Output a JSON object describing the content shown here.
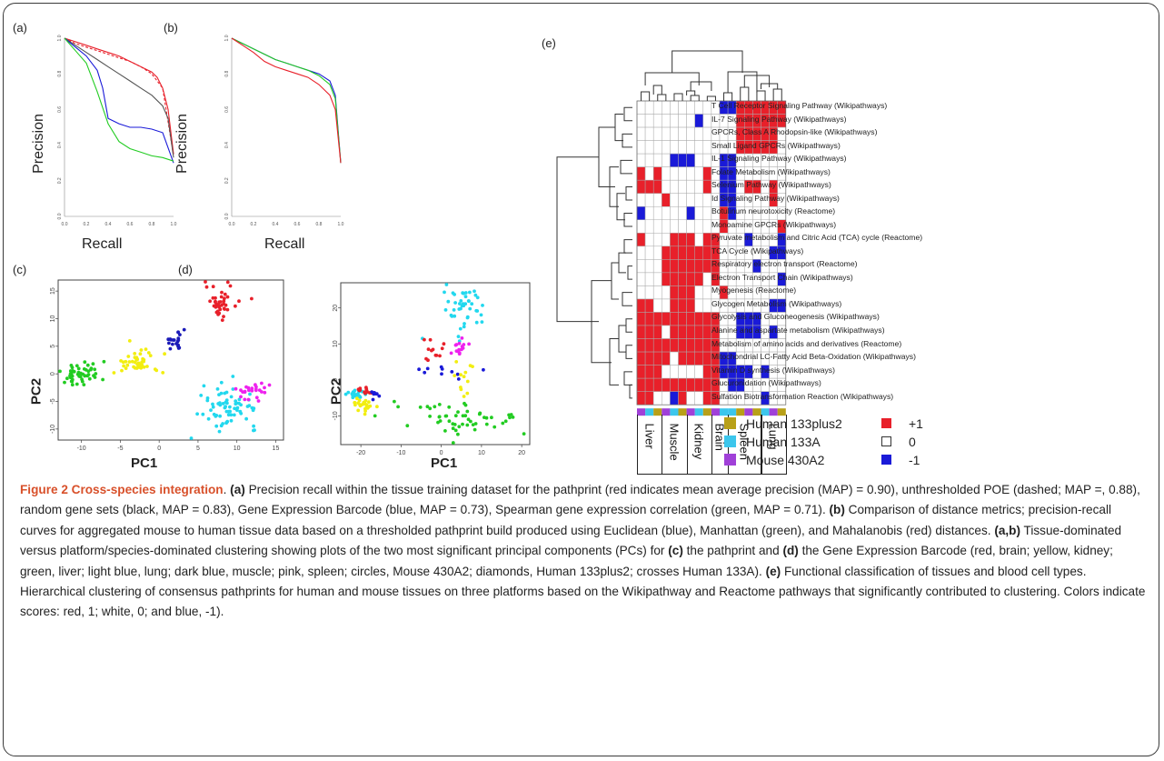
{
  "panels": {
    "a": {
      "letter": "(a)",
      "ylabel": "Precision",
      "xlabel": "Recall"
    },
    "b": {
      "letter": "(b)",
      "ylabel": "Precision",
      "xlabel": "Recall"
    },
    "c": {
      "letter": "(c)",
      "ylabel": "PC2",
      "xlabel": "PC1"
    },
    "d": {
      "letter": "(d)",
      "ylabel": "PC2",
      "xlabel": "PC1"
    },
    "e": {
      "letter": "(e)"
    }
  },
  "colors": {
    "red": "#e8202a",
    "blue": "#1a1ad8",
    "green": "#22cc22",
    "black": "#555555",
    "yellow": "#f2ee10",
    "cyan": "#22d8ee",
    "magenta": "#ee22ee",
    "darkblue": "#1a1ab8",
    "gold": "#b8a018",
    "lightblue": "#3cc6ec",
    "purple": "#a040d8"
  },
  "chart_data": [
    {
      "type": "line",
      "panel": "a",
      "xlabel": "Recall",
      "ylabel": "Precision",
      "xlim": [
        0,
        1
      ],
      "ylim": [
        0,
        1
      ],
      "xticks": [
        "0.0",
        "0.2",
        "0.4",
        "0.6",
        "0.8",
        "1.0"
      ],
      "yticks": [
        "0.0",
        "0.2",
        "0.4",
        "0.6",
        "0.8",
        "1.0"
      ],
      "series": [
        {
          "color": "red",
          "x": [
            0,
            0.1,
            0.2,
            0.3,
            0.4,
            0.5,
            0.6,
            0.7,
            0.8,
            0.85,
            0.9,
            0.95,
            1.0
          ],
          "y": [
            1.0,
            0.98,
            0.96,
            0.94,
            0.92,
            0.9,
            0.87,
            0.84,
            0.81,
            0.78,
            0.72,
            0.6,
            0.35
          ]
        },
        {
          "color": "red",
          "dashed": true,
          "x": [
            0,
            0.1,
            0.2,
            0.3,
            0.4,
            0.5,
            0.6,
            0.7,
            0.8,
            0.9,
            1.0
          ],
          "y": [
            1.0,
            0.97,
            0.95,
            0.93,
            0.91,
            0.89,
            0.87,
            0.84,
            0.8,
            0.72,
            0.34
          ]
        },
        {
          "color": "black",
          "x": [
            0,
            0.1,
            0.2,
            0.3,
            0.4,
            0.5,
            0.6,
            0.7,
            0.8,
            0.9,
            0.95,
            1.0
          ],
          "y": [
            1.0,
            0.96,
            0.92,
            0.88,
            0.84,
            0.8,
            0.76,
            0.72,
            0.68,
            0.62,
            0.55,
            0.33
          ]
        },
        {
          "color": "blue",
          "x": [
            0,
            0.1,
            0.2,
            0.3,
            0.35,
            0.4,
            0.5,
            0.6,
            0.7,
            0.8,
            0.9,
            1.0
          ],
          "y": [
            1.0,
            0.95,
            0.9,
            0.82,
            0.72,
            0.55,
            0.52,
            0.5,
            0.5,
            0.49,
            0.47,
            0.3
          ]
        },
        {
          "color": "green",
          "x": [
            0,
            0.1,
            0.2,
            0.3,
            0.4,
            0.5,
            0.6,
            0.7,
            0.8,
            0.9,
            1.0
          ],
          "y": [
            1.0,
            0.93,
            0.86,
            0.7,
            0.52,
            0.42,
            0.38,
            0.36,
            0.34,
            0.33,
            0.31
          ]
        }
      ]
    },
    {
      "type": "line",
      "panel": "b",
      "xlabel": "Recall",
      "ylabel": "Precision",
      "xlim": [
        0,
        1
      ],
      "ylim": [
        0,
        1
      ],
      "xticks": [
        "0.0",
        "0.2",
        "0.4",
        "0.6",
        "0.8",
        "1.0"
      ],
      "yticks": [
        "0.0",
        "0.2",
        "0.4",
        "0.6",
        "0.8",
        "1.0"
      ],
      "series": [
        {
          "color": "blue",
          "x": [
            0,
            0.1,
            0.2,
            0.3,
            0.4,
            0.5,
            0.6,
            0.7,
            0.8,
            0.9,
            0.95,
            1.0
          ],
          "y": [
            1.0,
            0.97,
            0.94,
            0.91,
            0.88,
            0.86,
            0.84,
            0.82,
            0.8,
            0.76,
            0.68,
            0.3
          ]
        },
        {
          "color": "green",
          "x": [
            0,
            0.1,
            0.2,
            0.3,
            0.4,
            0.5,
            0.6,
            0.7,
            0.8,
            0.9,
            0.95,
            1.0
          ],
          "y": [
            1.0,
            0.97,
            0.94,
            0.91,
            0.88,
            0.86,
            0.84,
            0.82,
            0.79,
            0.74,
            0.66,
            0.3
          ]
        },
        {
          "color": "red",
          "x": [
            0,
            0.1,
            0.2,
            0.3,
            0.4,
            0.5,
            0.6,
            0.7,
            0.8,
            0.9,
            0.95,
            1.0
          ],
          "y": [
            1.0,
            0.96,
            0.92,
            0.87,
            0.84,
            0.82,
            0.8,
            0.78,
            0.74,
            0.68,
            0.6,
            0.3
          ]
        }
      ]
    },
    {
      "type": "scatter",
      "panel": "c",
      "xlabel": "PC1",
      "ylabel": "PC2",
      "xlim": [
        -13,
        16
      ],
      "ylim": [
        -12,
        17
      ],
      "xticks": [
        "-10",
        "-5",
        "0",
        "5",
        "10",
        "15"
      ],
      "yticks": [
        "-10",
        "-5",
        "0",
        "5",
        "10",
        "15"
      ],
      "clusters": [
        {
          "color": "red",
          "cx": 8,
          "cy": 13,
          "sx": 1.0,
          "sy": 1.6,
          "n": 40
        },
        {
          "color": "darkblue",
          "cx": 2,
          "cy": 6,
          "sx": 0.7,
          "sy": 0.9,
          "n": 20
        },
        {
          "color": "yellow",
          "cx": -3,
          "cy": 2,
          "sx": 1.5,
          "sy": 1.2,
          "n": 45
        },
        {
          "color": "green",
          "cx": -10,
          "cy": 0,
          "sx": 1.5,
          "sy": 1.2,
          "n": 50
        },
        {
          "color": "cyan",
          "cx": 9,
          "cy": -6,
          "sx": 1.8,
          "sy": 1.8,
          "n": 70
        },
        {
          "color": "magenta",
          "cx": 12,
          "cy": -3,
          "sx": 1.2,
          "sy": 0.8,
          "n": 25
        }
      ]
    },
    {
      "type": "scatter",
      "panel": "d",
      "xlabel": "PC1",
      "ylabel": "PC2",
      "xlim": [
        -25,
        22
      ],
      "ylim": [
        -18,
        27
      ],
      "xticks": [
        "-20",
        "-10",
        "0",
        "10",
        "20"
      ],
      "yticks": [
        "-10",
        "0",
        "10",
        "20"
      ],
      "clusters": [
        {
          "color": "cyan",
          "cx": 6,
          "cy": 20,
          "sx": 2.5,
          "sy": 3.5,
          "n": 45
        },
        {
          "color": "red",
          "cx": -2,
          "cy": 8,
          "sx": 2.5,
          "sy": 1.6,
          "n": 12
        },
        {
          "color": "magenta",
          "cx": 4,
          "cy": 9,
          "sx": 1.5,
          "sy": 1.5,
          "n": 15
        },
        {
          "color": "blue",
          "cx": 1,
          "cy": 3,
          "sx": 3.0,
          "sy": 1.2,
          "n": 10
        },
        {
          "color": "yellow",
          "cx": 6,
          "cy": -1,
          "sx": 3,
          "sy": 3,
          "n": 12
        },
        {
          "color": "green",
          "cx": 5,
          "cy": -11,
          "sx": 9,
          "sy": 2.2,
          "n": 55
        },
        {
          "color": "cyan",
          "cx": -21,
          "cy": -4,
          "sx": 1.2,
          "sy": 1.0,
          "n": 25
        },
        {
          "color": "yellow",
          "cx": -19,
          "cy": -7,
          "sx": 1.5,
          "sy": 0.8,
          "n": 25
        },
        {
          "color": "red",
          "cx": -19,
          "cy": -3,
          "sx": 1.0,
          "sy": 0.7,
          "n": 12
        },
        {
          "color": "blue",
          "cx": -16,
          "cy": -4,
          "sx": 1.0,
          "sy": 0.7,
          "n": 8
        }
      ]
    },
    {
      "type": "heatmap",
      "panel": "e",
      "rows": [
        "T Cell Receptor Signaling Pathway (Wikipathways)",
        "IL-7 Signaling Pathway (Wikipathways)",
        "GPCRs, Class A Rhodopsin-like (Wikipathways)",
        "Small Ligand GPCRs (Wikipathways)",
        "IL-1 Signaling Pathway (Wikipathways)",
        "Folate Metabolism (Wikipathways)",
        "Selenium Pathway (Wikipathways)",
        "Id Signaling Pathway (Wikipathways)",
        "Botulinum neurotoxicity (Reactome)",
        "Monoamine GPCRs (Wikipathways)",
        "Pyruvate metabolism and Citric Acid (TCA) cycle (Reactome)",
        "TCA Cycle (Wikipathways)",
        "Respiratory electron transport (Reactome)",
        "Electron Transport Chain (Wikipathways)",
        "Myogenesis (Reactome)",
        "Glycogen Metabolism (Wikipathways)",
        "Glycolysis and Gluconeogenesis (Wikipathways)",
        "Alanine and aspartate metabolism (Wikipathways)",
        "Metabolism of amino acids and derivatives (Reactome)",
        "Mitochondrial LC-Fatty Acid Beta-Oxidation (Wikipathways)",
        "Vitamin D synthesis (Wikipathways)",
        "Glucuronidation (Wikipathways)",
        "Sulfation Biotransformation Reaction (Wikipathways)"
      ],
      "columns_tissues": [
        "Liver",
        "Muscle",
        "Kidney",
        "Brain",
        "Spleen",
        "Lung"
      ],
      "column_platforms": [
        "purple",
        "lightblue",
        "gold",
        "purple",
        "lightblue",
        "gold",
        "purple",
        "lightblue",
        "gold",
        "purple",
        "lightblue",
        "lightblue",
        "gold",
        "purple",
        "gold",
        "lightblue",
        "purple",
        "gold"
      ],
      "values": [
        [
          0,
          0,
          0,
          0,
          0,
          0,
          0,
          0,
          0,
          0,
          -1,
          -1,
          1,
          1,
          1,
          1,
          1,
          1
        ],
        [
          0,
          0,
          0,
          0,
          0,
          0,
          0,
          -1,
          0,
          0,
          0,
          0,
          1,
          1,
          1,
          1,
          1,
          1
        ],
        [
          0,
          0,
          0,
          0,
          0,
          0,
          0,
          0,
          0,
          0,
          0,
          0,
          1,
          1,
          1,
          1,
          1,
          0
        ],
        [
          0,
          0,
          0,
          0,
          0,
          0,
          0,
          0,
          0,
          0,
          0,
          0,
          1,
          1,
          1,
          1,
          1,
          0
        ],
        [
          0,
          0,
          0,
          0,
          -1,
          -1,
          -1,
          0,
          0,
          0,
          -1,
          -1,
          0,
          0,
          0,
          0,
          0,
          0
        ],
        [
          1,
          0,
          1,
          0,
          0,
          0,
          0,
          0,
          1,
          0,
          -1,
          -1,
          0,
          0,
          0,
          0,
          0,
          0
        ],
        [
          1,
          1,
          1,
          0,
          0,
          0,
          0,
          0,
          1,
          0,
          -1,
          -1,
          0,
          1,
          1,
          0,
          1,
          0
        ],
        [
          0,
          0,
          0,
          1,
          0,
          0,
          0,
          0,
          0,
          0,
          -1,
          -1,
          0,
          0,
          0,
          0,
          1,
          0
        ],
        [
          -1,
          0,
          0,
          0,
          0,
          0,
          -1,
          0,
          0,
          0,
          1,
          -1,
          0,
          0,
          0,
          0,
          0,
          0
        ],
        [
          0,
          0,
          0,
          0,
          0,
          0,
          0,
          0,
          0,
          0,
          1,
          0,
          0,
          0,
          0,
          0,
          0,
          1
        ],
        [
          1,
          0,
          0,
          0,
          1,
          1,
          1,
          0,
          1,
          1,
          0,
          0,
          0,
          -1,
          0,
          0,
          0,
          -1
        ],
        [
          0,
          0,
          0,
          1,
          1,
          1,
          1,
          1,
          1,
          1,
          0,
          0,
          0,
          0,
          0,
          0,
          -1,
          -1
        ],
        [
          0,
          0,
          0,
          1,
          1,
          1,
          1,
          1,
          1,
          1,
          0,
          0,
          0,
          0,
          -1,
          0,
          0,
          0
        ],
        [
          0,
          0,
          0,
          1,
          1,
          1,
          1,
          1,
          0,
          1,
          0,
          0,
          0,
          0,
          0,
          0,
          0,
          -1
        ],
        [
          0,
          0,
          0,
          0,
          1,
          1,
          1,
          0,
          0,
          0,
          1,
          0,
          0,
          0,
          0,
          0,
          0,
          0
        ],
        [
          1,
          1,
          0,
          0,
          1,
          1,
          1,
          0,
          0,
          0,
          0,
          0,
          0,
          0,
          0,
          0,
          -1,
          -1
        ],
        [
          1,
          1,
          1,
          1,
          1,
          1,
          1,
          1,
          1,
          1,
          0,
          0,
          -1,
          -1,
          -1,
          0,
          0,
          0
        ],
        [
          1,
          1,
          1,
          0,
          1,
          1,
          1,
          1,
          1,
          1,
          0,
          0,
          -1,
          -1,
          -1,
          0,
          -1,
          0
        ],
        [
          1,
          1,
          1,
          1,
          1,
          1,
          1,
          1,
          1,
          1,
          0,
          0,
          0,
          0,
          0,
          0,
          0,
          0
        ],
        [
          1,
          1,
          1,
          1,
          0,
          1,
          1,
          1,
          1,
          1,
          -1,
          -1,
          0,
          0,
          0,
          0,
          0,
          0
        ],
        [
          1,
          1,
          1,
          0,
          0,
          0,
          0,
          0,
          1,
          1,
          -1,
          -1,
          -1,
          -1,
          0,
          -1,
          0,
          0
        ],
        [
          1,
          1,
          1,
          1,
          1,
          1,
          1,
          1,
          1,
          1,
          0,
          -1,
          -1,
          0,
          0,
          0,
          0,
          0
        ],
        [
          1,
          1,
          0,
          0,
          -1,
          1,
          0,
          0,
          1,
          1,
          0,
          0,
          0,
          0,
          0,
          -1,
          0,
          0
        ]
      ]
    }
  ],
  "legend": {
    "platforms": [
      {
        "label": "Human 133plus2",
        "color": "gold"
      },
      {
        "label": "Human 133A",
        "color": "lightblue"
      },
      {
        "label": "Mouse 430A2",
        "color": "purple"
      }
    ],
    "scores": [
      {
        "label": "+1",
        "color": "red"
      },
      {
        "label": "0",
        "color": "white"
      },
      {
        "label": "-1",
        "color": "blue"
      }
    ]
  },
  "caption": {
    "title": "Figure 2 Cross-species integration",
    "segments": [
      {
        "b": false,
        "t": ". "
      },
      {
        "b": true,
        "t": "(a)"
      },
      {
        "b": false,
        "t": " Precision recall within the tissue training dataset for the pathprint (red indicates mean average precision (MAP) = 0.90), unthresholded POE (dashed; MAP =, 0.88), random gene sets (black, MAP = 0.83), Gene Expression Barcode (blue, MAP = 0.73), Spearman gene expression correlation (green, MAP = 0.71). "
      },
      {
        "b": true,
        "t": "(b)"
      },
      {
        "b": false,
        "t": " Comparison of distance metrics; precision-recall curves for aggregated mouse to human tissue data based on a thresholded pathprint build produced using Euclidean (blue), Manhattan (green), and Mahalanobis (red) distances. "
      },
      {
        "b": true,
        "t": "(a,b)"
      },
      {
        "b": false,
        "t": " Tissue-dominated versus platform/species-dominated clustering showing plots of the two most significant principal components (PCs) for "
      },
      {
        "b": true,
        "t": "(c)"
      },
      {
        "b": false,
        "t": " the pathprint and "
      },
      {
        "b": true,
        "t": "(d)"
      },
      {
        "b": false,
        "t": " the Gene Expression Barcode (red, brain; yellow, kidney; green, liver; light blue, lung; dark blue, muscle; pink, spleen; circles, Mouse 430A2; diamonds, Human 133plus2; crosses Human 133A). "
      },
      {
        "b": true,
        "t": "(e)"
      },
      {
        "b": false,
        "t": " Functional classification of tissues and blood cell types. Hierarchical clustering of consensus pathprints for human and mouse tissues on three platforms based on the Wikipathway and Reactome pathways that significantly contributed to clustering. Colors indicate scores: red, 1; white, 0; and blue, -1)."
      }
    ]
  }
}
